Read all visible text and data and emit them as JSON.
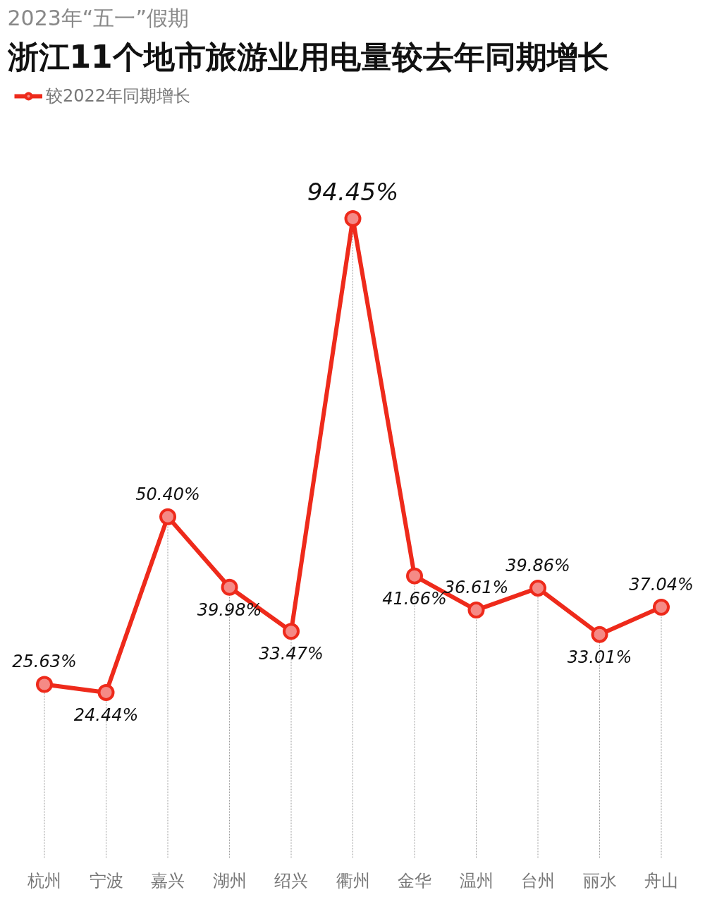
{
  "chart_data": {
    "type": "line",
    "subtitle": "2023年“五一”假期",
    "title": "浙江11个地市旅游业用电量较去年同期增长",
    "categories": [
      "杭州",
      "宁波",
      "嘉兴",
      "湖州",
      "绍兴",
      "衢州",
      "金华",
      "温州",
      "台州",
      "丽水",
      "舟山"
    ],
    "series": [
      {
        "name": "较2022年同期增长",
        "color": "#ee2a1b",
        "values": [
          25.63,
          24.44,
          50.4,
          39.98,
          33.47,
          94.45,
          41.66,
          36.61,
          39.86,
          33.01,
          37.04
        ],
        "value_labels": [
          "25.63%",
          "24.44%",
          "50.40%",
          "39.98%",
          "33.47%",
          "94.45%",
          "41.66%",
          "36.61%",
          "39.86%",
          "33.01%",
          "37.04%"
        ]
      }
    ],
    "marker": "circle",
    "line_style": "solid",
    "legend": "top left",
    "grid": "x",
    "tick_labels": "x"
  }
}
